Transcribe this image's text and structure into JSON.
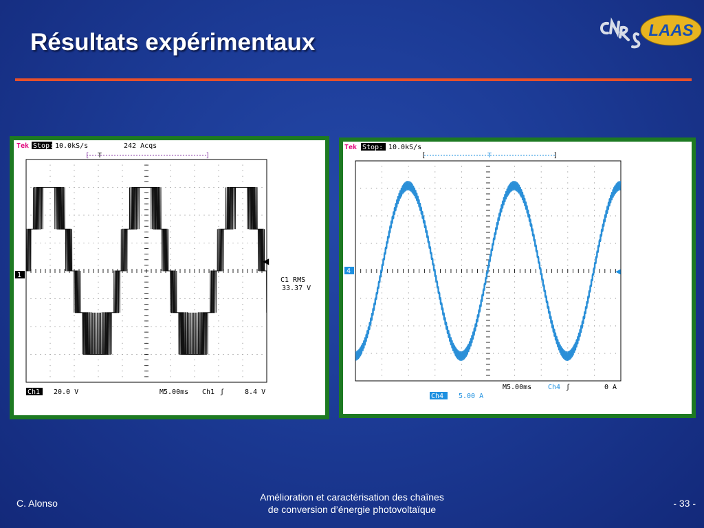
{
  "slide": {
    "title": "Résultats expérimentaux",
    "logo_text": "LAAS",
    "logo_letters": "CNRS",
    "footer_author": "C. Alonso",
    "footer_title_line1": "Amélioration et caractérisation des chaînes",
    "footer_title_line2": "de conversion d’énergie photovoltaïque",
    "page_number": "- 33 -"
  },
  "colors": {
    "panel_border": "#1d7a22",
    "rule": "#e8502a",
    "ch1_trace": "#111111",
    "ch4_trace": "#2a8fd8",
    "tek_label": "#e0007a",
    "ch4_label": "#1e90e0"
  },
  "scope1": {
    "brand": "Tek",
    "state": "Stop:",
    "rate": "10.0kS/s",
    "acqs": "242 Acqs",
    "trigger_marker": "T",
    "ground_marker": "1",
    "meas_label": "C1 RMS",
    "meas_value": "33.37 V",
    "ch_label": "Ch1",
    "ch_scale": "20.0 V",
    "timebase": "M5.00ms",
    "trig_source": "Ch1",
    "trig_slope": "ʃ",
    "trig_level": "8.4 V"
  },
  "scope2": {
    "brand": "Tek",
    "state": "Stop:",
    "rate": "10.0kS/s",
    "trigger_marker": "T",
    "ground_marker": "4",
    "timebase": "M5.00ms",
    "trig_source": "Ch4",
    "trig_slope": "ʃ",
    "trig_level": "0 A",
    "ch_label": "Ch4",
    "ch_scale": "5.00 A"
  },
  "chart_data": [
    {
      "type": "line",
      "title": "",
      "xlabel": "",
      "ylabel": "",
      "x_divisions": 10,
      "y_divisions": 8,
      "x_range_ms": [
        0,
        50
      ],
      "y_range_V": [
        -80,
        80
      ],
      "grid": true,
      "series": [
        {
          "name": "Ch1",
          "waveform": "multilevel-pwm",
          "fundamental_period_ms": 20,
          "levels_V": [
            -60,
            -30,
            0,
            30,
            60
          ],
          "rms_V": 33.37
        }
      ]
    },
    {
      "type": "line",
      "title": "",
      "xlabel": "",
      "ylabel": "",
      "x_divisions": 10,
      "y_divisions": 8,
      "x_range_ms": [
        0,
        50
      ],
      "y_range_A": [
        -20,
        20
      ],
      "grid": true,
      "series": [
        {
          "name": "Ch4",
          "waveform": "sine",
          "period_ms": 20,
          "amplitude_A": 15.5,
          "phase_deg": 0
        }
      ]
    }
  ]
}
